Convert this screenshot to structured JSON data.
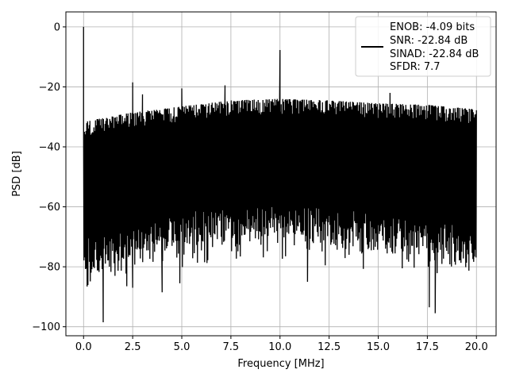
{
  "chart_data": {
    "type": "line",
    "xlabel": "Frequency [MHz]",
    "ylabel": "PSD [dB]",
    "xlim": [
      -0.9,
      21.0
    ],
    "ylim": [
      -103.0,
      5.0
    ],
    "x_ticks": [
      0.0,
      2.5,
      5.0,
      7.5,
      10.0,
      12.5,
      15.0,
      17.5,
      20.0
    ],
    "x_tick_labels": [
      "0.0",
      "2.5",
      "5.0",
      "7.5",
      "10.0",
      "12.5",
      "15.0",
      "17.5",
      "20.0"
    ],
    "y_ticks": [
      0,
      -20,
      -40,
      -60,
      -80,
      -100
    ],
    "y_tick_labels": [
      "0",
      "−20",
      "−40",
      "−60",
      "−80",
      "−100"
    ],
    "grid": true,
    "legend_position": "top-right",
    "line_color": "#000000",
    "legend": {
      "lines": [
        "ENOB: -4.09 bits",
        "SNR: -22.84 dB",
        "SINAD: -22.84 dB",
        "SFDR: 7.7"
      ]
    },
    "series": [
      {
        "frequency_range_mhz": [
          0.0,
          20.0
        ],
        "noise_envelope": {
          "x": [
            0.1,
            2.5,
            5.0,
            7.5,
            10.0,
            12.5,
            15.0,
            17.5,
            20.0
          ],
          "upper_db": [
            -31.5,
            -28.5,
            -26.5,
            -24.5,
            -24.0,
            -24.5,
            -25.5,
            -26.0,
            -27.5
          ],
          "floor_db": [
            -76,
            -72,
            -68,
            -66,
            -65,
            -66,
            -68,
            -70,
            -74
          ]
        },
        "peaks": [
          {
            "x": 0.0,
            "y": 0.0
          },
          {
            "x": 2.5,
            "y": -18.5
          },
          {
            "x": 3.0,
            "y": -22.5
          },
          {
            "x": 5.0,
            "y": -20.5
          },
          {
            "x": 7.2,
            "y": -19.5
          },
          {
            "x": 10.0,
            "y": -7.7
          },
          {
            "x": 15.6,
            "y": -22.0
          }
        ],
        "dips": [
          {
            "x": 0.5,
            "y": -80.0
          },
          {
            "x": 1.0,
            "y": -98.5
          },
          {
            "x": 1.6,
            "y": -83.0
          },
          {
            "x": 2.2,
            "y": -86.5
          },
          {
            "x": 2.5,
            "y": -87.0
          },
          {
            "x": 4.0,
            "y": -88.5
          },
          {
            "x": 4.9,
            "y": -85.5
          },
          {
            "x": 11.4,
            "y": -85.0
          },
          {
            "x": 17.6,
            "y": -93.5
          },
          {
            "x": 17.9,
            "y": -95.5
          }
        ]
      }
    ]
  }
}
